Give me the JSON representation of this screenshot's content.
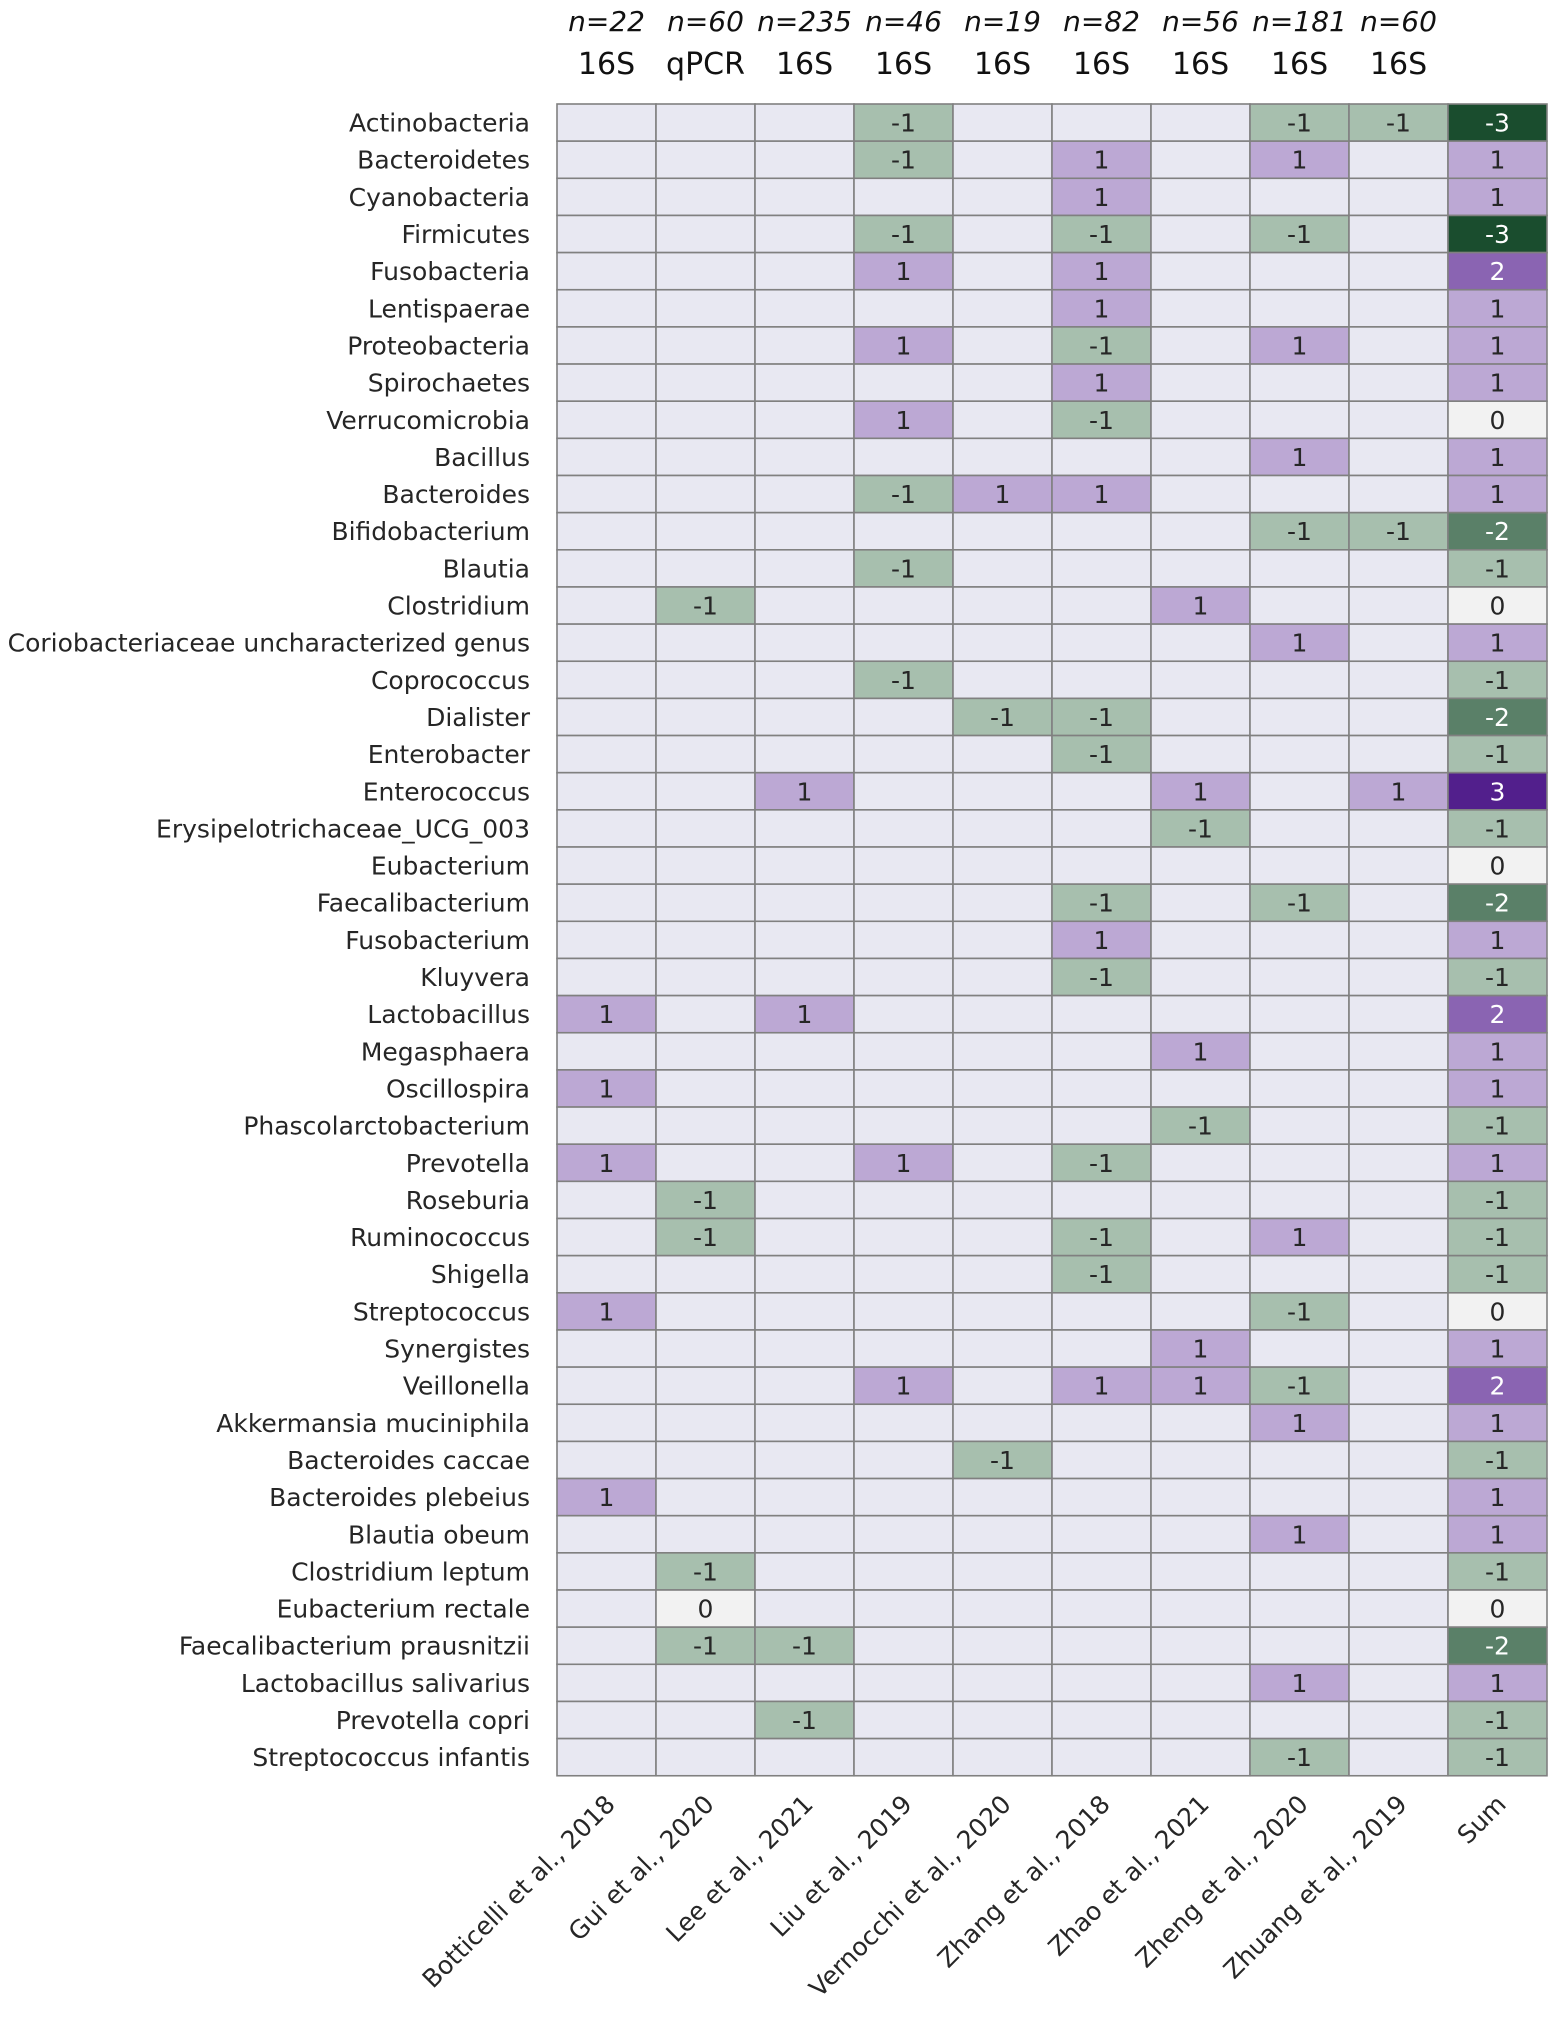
{
  "chart_data": {
    "type": "heatmap",
    "title": "",
    "columns": [
      {
        "label": "Botticelli et al., 2018",
        "n": "n=22",
        "method": "16S"
      },
      {
        "label": "Gui et al., 2020",
        "n": "n=60",
        "method": "qPCR"
      },
      {
        "label": "Lee et al., 2021",
        "n": "n=235",
        "method": "16S"
      },
      {
        "label": "Liu et al., 2019",
        "n": "n=46",
        "method": "16S"
      },
      {
        "label": "Vernocchi et al., 2020",
        "n": "n=19",
        "method": "16S"
      },
      {
        "label": "Zhang et al., 2018",
        "n": "n=82",
        "method": "16S"
      },
      {
        "label": "Zhao et al., 2021",
        "n": "n=56",
        "method": "16S"
      },
      {
        "label": "Zheng et al., 2020",
        "n": "n=181",
        "method": "16S"
      },
      {
        "label": "Zhuang et al., 2019",
        "n": "n=60",
        "method": "16S"
      },
      {
        "label": "Sum",
        "n": "",
        "method": ""
      }
    ],
    "rows": [
      "Actinobacteria",
      "Bacteroidetes",
      "Cyanobacteria",
      "Firmicutes",
      "Fusobacteria",
      "Lentispaerae",
      "Proteobacteria",
      "Spirochaetes",
      "Verrucomicrobia",
      "Bacillus",
      "Bacteroides",
      "Bifidobacterium",
      "Blautia",
      "Clostridium",
      "Coriobacteriaceae uncharacterized genus",
      "Coprococcus",
      "Dialister",
      "Enterobacter",
      "Enterococcus",
      "Erysipelotrichaceae_UCG_003",
      "Eubacterium",
      "Faecalibacterium",
      "Fusobacterium",
      "Kluyvera",
      "Lactobacillus",
      "Megasphaera",
      "Oscillospira",
      "Phascolarctobacterium",
      "Prevotella",
      "Roseburia",
      "Ruminococcus",
      "Shigella",
      "Streptococcus",
      "Synergistes",
      "Veillonella",
      "Akkermansia muciniphila",
      "Bacteroides caccae",
      "Bacteroides plebeius",
      "Blautia obeum",
      "Clostridium leptum",
      "Eubacterium rectale",
      "Faecalibacterium prausnitzii",
      "Lactobacillus salivarius",
      "Prevotella copri",
      "Streptococcus infantis"
    ],
    "values": [
      [
        null,
        null,
        null,
        -1,
        null,
        null,
        null,
        -1,
        -1,
        -3
      ],
      [
        null,
        null,
        null,
        -1,
        null,
        1,
        null,
        1,
        null,
        1
      ],
      [
        null,
        null,
        null,
        null,
        null,
        1,
        null,
        null,
        null,
        1
      ],
      [
        null,
        null,
        null,
        -1,
        null,
        -1,
        null,
        -1,
        null,
        -3
      ],
      [
        null,
        null,
        null,
        1,
        null,
        1,
        null,
        null,
        null,
        2
      ],
      [
        null,
        null,
        null,
        null,
        null,
        1,
        null,
        null,
        null,
        1
      ],
      [
        null,
        null,
        null,
        1,
        null,
        -1,
        null,
        1,
        null,
        1
      ],
      [
        null,
        null,
        null,
        null,
        null,
        1,
        null,
        null,
        null,
        1
      ],
      [
        null,
        null,
        null,
        1,
        null,
        -1,
        null,
        null,
        null,
        0
      ],
      [
        null,
        null,
        null,
        null,
        null,
        null,
        null,
        1,
        null,
        1
      ],
      [
        null,
        null,
        null,
        -1,
        1,
        1,
        null,
        null,
        null,
        1
      ],
      [
        null,
        null,
        null,
        null,
        null,
        null,
        null,
        -1,
        -1,
        -2
      ],
      [
        null,
        null,
        null,
        -1,
        null,
        null,
        null,
        null,
        null,
        -1
      ],
      [
        null,
        -1,
        null,
        null,
        null,
        null,
        1,
        null,
        null,
        0
      ],
      [
        null,
        null,
        null,
        null,
        null,
        null,
        null,
        1,
        null,
        1
      ],
      [
        null,
        null,
        null,
        -1,
        null,
        null,
        null,
        null,
        null,
        -1
      ],
      [
        null,
        null,
        null,
        null,
        -1,
        -1,
        null,
        null,
        null,
        -2
      ],
      [
        null,
        null,
        null,
        null,
        null,
        -1,
        null,
        null,
        null,
        -1
      ],
      [
        null,
        null,
        1,
        null,
        null,
        null,
        1,
        null,
        1,
        3
      ],
      [
        null,
        null,
        null,
        null,
        null,
        null,
        -1,
        null,
        null,
        -1
      ],
      [
        null,
        null,
        null,
        null,
        null,
        null,
        null,
        null,
        null,
        0
      ],
      [
        null,
        null,
        null,
        null,
        null,
        -1,
        null,
        -1,
        null,
        -2
      ],
      [
        null,
        null,
        null,
        null,
        null,
        1,
        null,
        null,
        null,
        1
      ],
      [
        null,
        null,
        null,
        null,
        null,
        -1,
        null,
        null,
        null,
        -1
      ],
      [
        1,
        null,
        1,
        null,
        null,
        null,
        null,
        null,
        null,
        2
      ],
      [
        null,
        null,
        null,
        null,
        null,
        null,
        1,
        null,
        null,
        1
      ],
      [
        1,
        null,
        null,
        null,
        null,
        null,
        null,
        null,
        null,
        1
      ],
      [
        null,
        null,
        null,
        null,
        null,
        null,
        -1,
        null,
        null,
        -1
      ],
      [
        1,
        null,
        null,
        1,
        null,
        -1,
        null,
        null,
        null,
        1
      ],
      [
        null,
        -1,
        null,
        null,
        null,
        null,
        null,
        null,
        null,
        -1
      ],
      [
        null,
        -1,
        null,
        null,
        null,
        -1,
        null,
        1,
        null,
        -1
      ],
      [
        null,
        null,
        null,
        null,
        null,
        -1,
        null,
        null,
        null,
        -1
      ],
      [
        1,
        null,
        null,
        null,
        null,
        null,
        null,
        -1,
        null,
        0
      ],
      [
        null,
        null,
        null,
        null,
        null,
        null,
        1,
        null,
        null,
        1
      ],
      [
        null,
        null,
        null,
        1,
        null,
        1,
        1,
        -1,
        null,
        2
      ],
      [
        null,
        null,
        null,
        null,
        null,
        null,
        null,
        1,
        null,
        1
      ],
      [
        null,
        null,
        null,
        null,
        -1,
        null,
        null,
        null,
        null,
        -1
      ],
      [
        1,
        null,
        null,
        null,
        null,
        null,
        null,
        null,
        null,
        1
      ],
      [
        null,
        null,
        null,
        null,
        null,
        null,
        null,
        1,
        null,
        1
      ],
      [
        null,
        -1,
        null,
        null,
        null,
        null,
        null,
        null,
        null,
        -1
      ],
      [
        null,
        0,
        null,
        null,
        null,
        null,
        null,
        null,
        null,
        0
      ],
      [
        null,
        -1,
        -1,
        null,
        null,
        null,
        null,
        null,
        null,
        -2
      ],
      [
        null,
        null,
        null,
        null,
        null,
        null,
        null,
        1,
        null,
        1
      ],
      [
        null,
        null,
        -1,
        null,
        null,
        null,
        null,
        null,
        null,
        -1
      ],
      [
        null,
        null,
        null,
        null,
        null,
        null,
        null,
        -1,
        null,
        -1
      ]
    ],
    "colors": {
      "empty": "#e8e8f2",
      "grid": "#808080",
      "zero": "#f2f2f2",
      "pos1": "#bca8d4",
      "pos2": "#8a64b2",
      "pos3": "#521f8c",
      "neg1": "#a7bfae",
      "neg2": "#5a8068",
      "neg3": "#1a4d2e",
      "text_dark": "#262626",
      "text_light": "#ffffff"
    }
  }
}
